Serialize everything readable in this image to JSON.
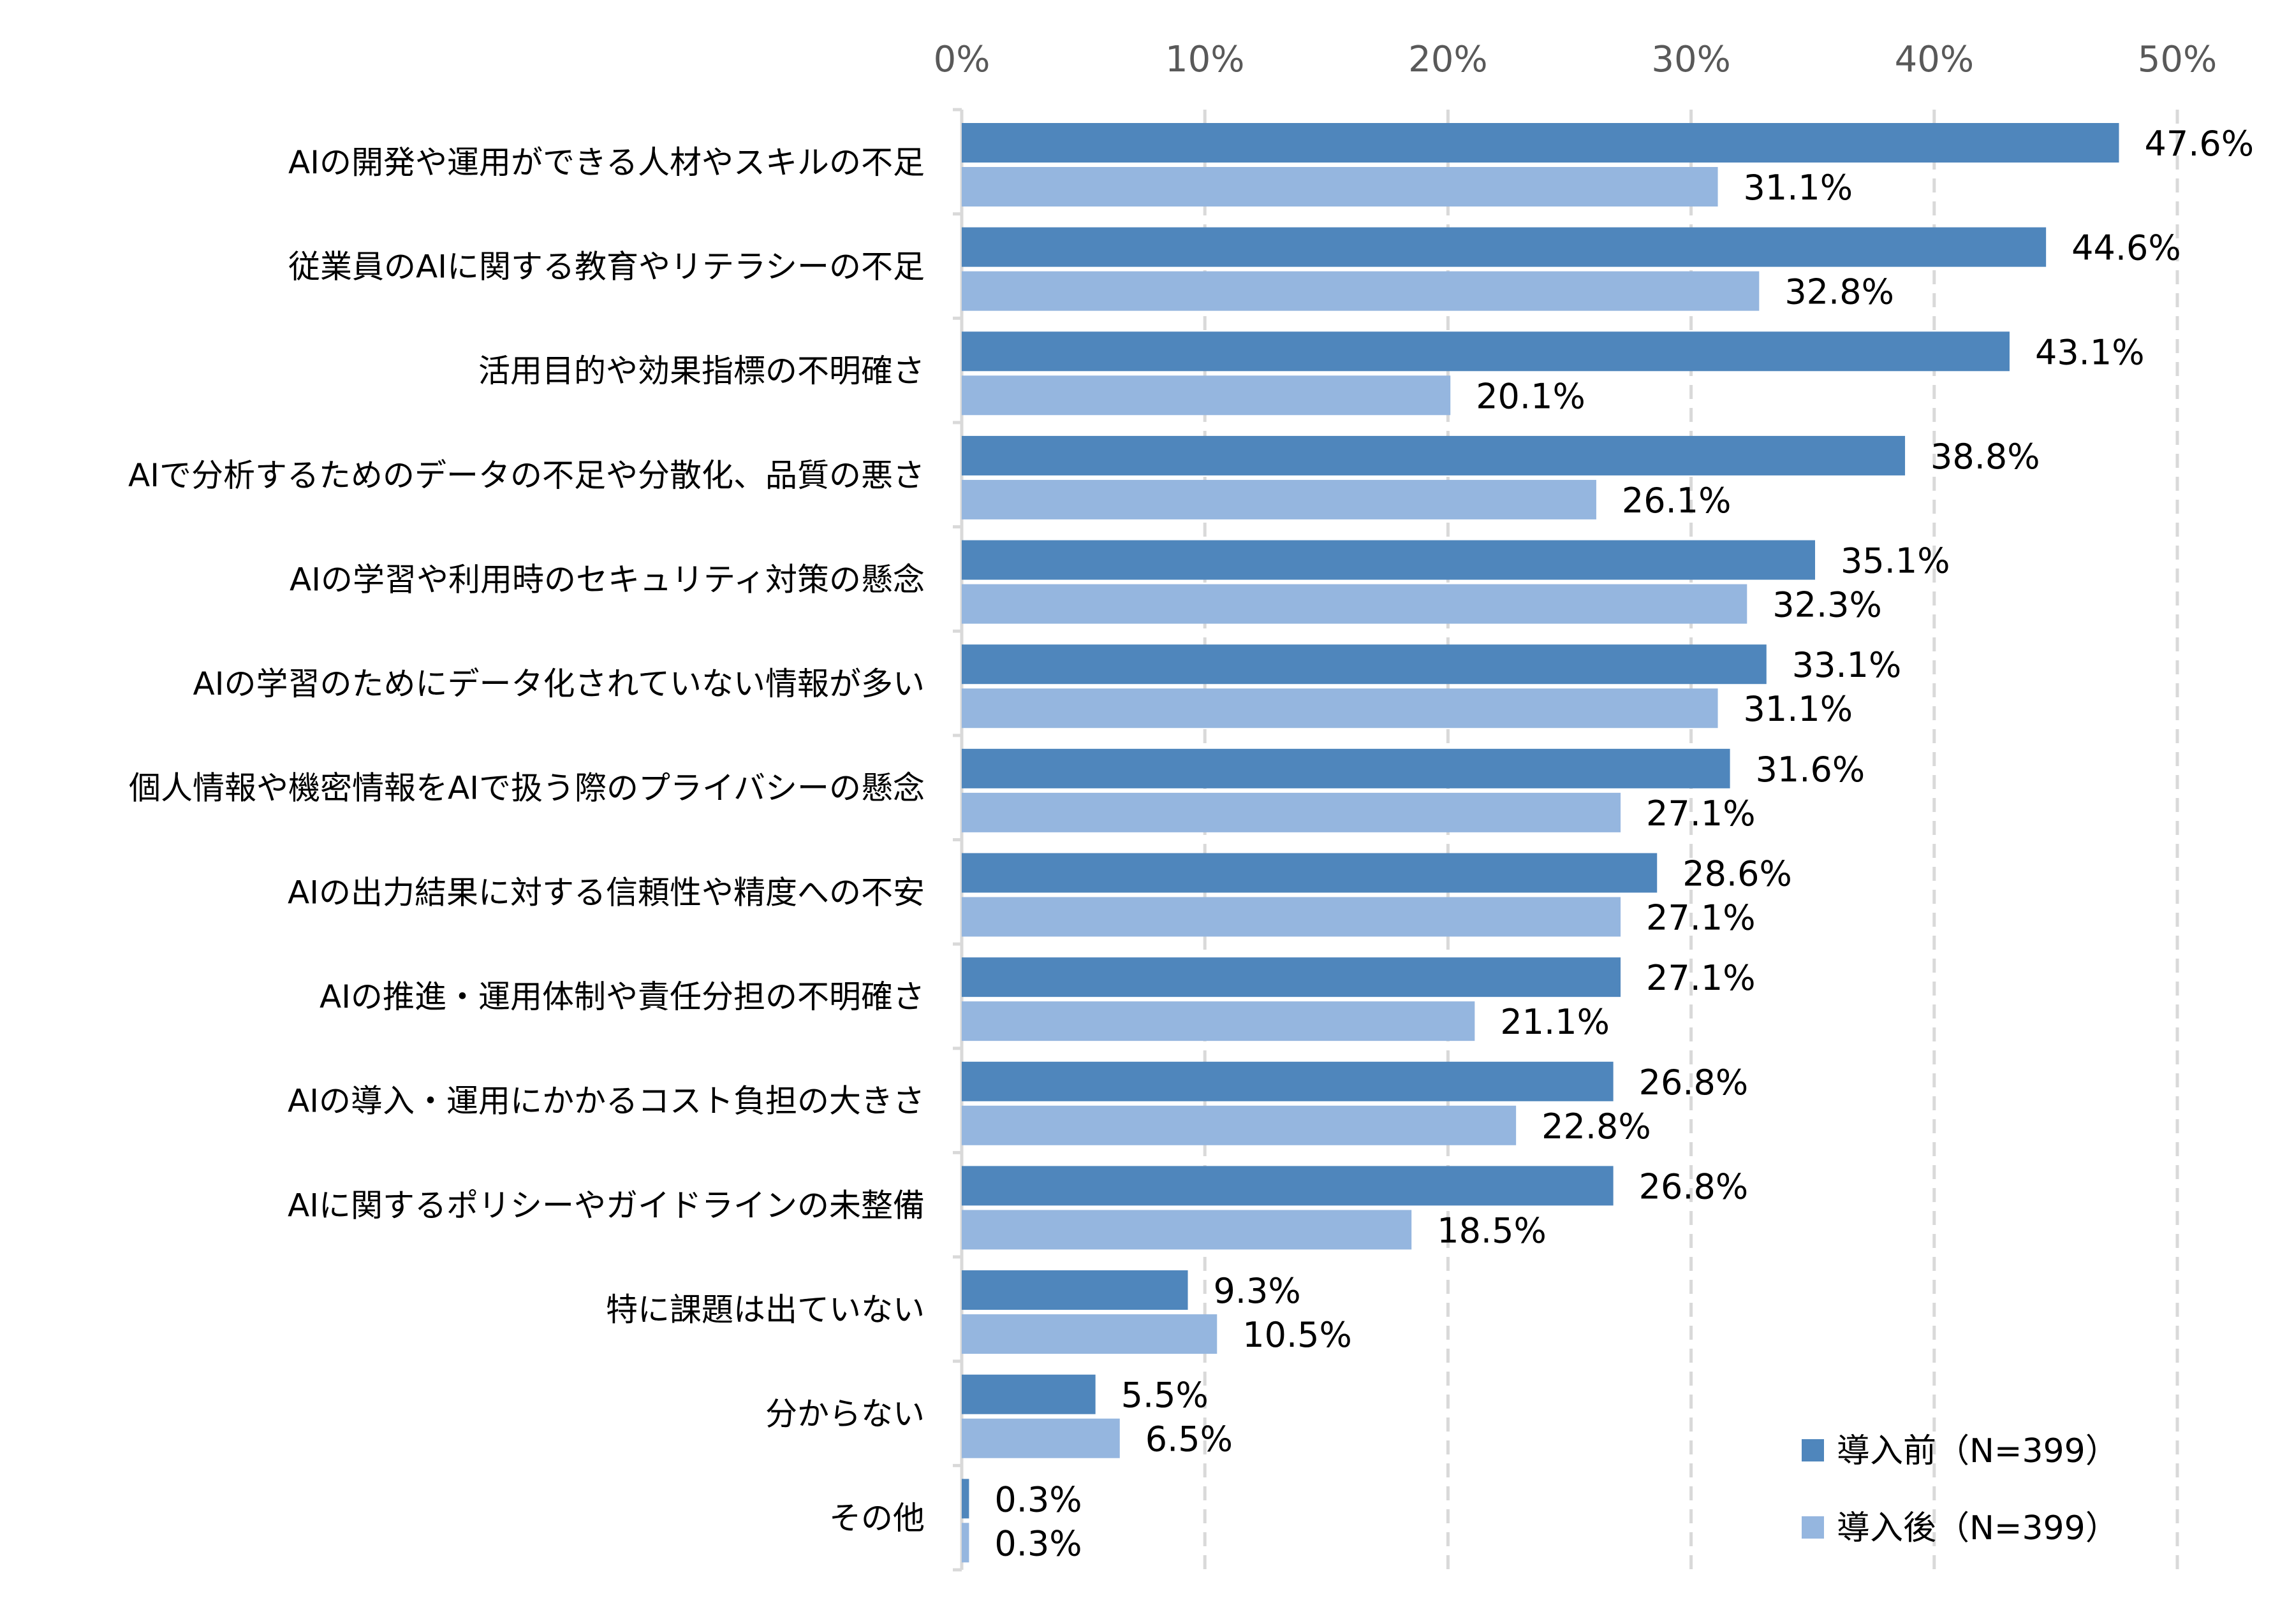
{
  "chart_data": {
    "type": "bar",
    "orientation": "horizontal",
    "categories": [
      "AIの開発や運用ができる人材やスキルの不足",
      "従業員のAIに関する教育やリテラシーの不足",
      "活用目的や効果指標の不明確さ",
      "AIで分析するためのデータの不足や分散化、品質の悪さ",
      "AIの学習や利用時のセキュリティ対策の懸念",
      "AIの学習のためにデータ化されていない情報が多い",
      "個人情報や機密情報をAIで扱う際のプライバシーの懸念",
      "AIの出力結果に対する信頼性や精度への不安",
      "AIの推進・運用体制や責任分担の不明確さ",
      "AIの導入・運用にかかるコスト負担の大きさ",
      "AIに関するポリシーやガイドラインの未整備",
      "特に課題は出ていない",
      "分からない",
      "その他"
    ],
    "series": [
      {
        "name": "導入前（N=399）",
        "color": "#4F86BC",
        "values": [
          47.6,
          44.6,
          43.1,
          38.8,
          35.1,
          33.1,
          31.6,
          28.6,
          27.1,
          26.8,
          26.8,
          9.3,
          5.5,
          0.3
        ],
        "labels": [
          "47.6%",
          "44.6%",
          "43.1%",
          "38.8%",
          "35.1%",
          "33.1%",
          "31.6%",
          "28.6%",
          "27.1%",
          "26.8%",
          "26.8%",
          "9.3%",
          "5.5%",
          "0.3%"
        ]
      },
      {
        "name": "導入後（N=399）",
        "color": "#95B6DF",
        "values": [
          31.1,
          32.8,
          20.1,
          26.1,
          32.3,
          31.1,
          27.1,
          27.1,
          21.1,
          22.8,
          18.5,
          10.5,
          6.5,
          0.3
        ],
        "labels": [
          "31.1%",
          "32.8%",
          "20.1%",
          "26.1%",
          "32.3%",
          "31.1%",
          "27.1%",
          "27.1%",
          "21.1%",
          "22.8%",
          "18.5%",
          "10.5%",
          "6.5%",
          "0.3%"
        ]
      }
    ],
    "xlim": [
      0,
      50
    ],
    "xticks": [
      "0%",
      "10%",
      "20%",
      "30%",
      "40%",
      "50%"
    ],
    "axis_position": "top",
    "grid": true,
    "grid_style": "dashed",
    "legend_position": "bottom-right",
    "title": "",
    "xlabel": "",
    "ylabel": ""
  }
}
